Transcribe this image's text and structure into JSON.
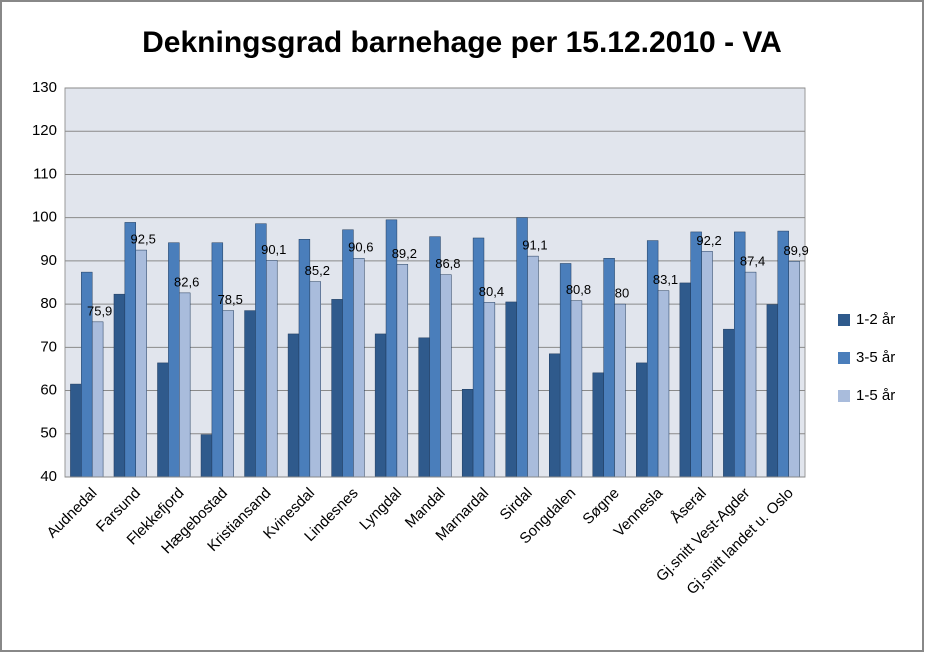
{
  "chart_data": {
    "type": "bar",
    "title": "Dekningsgrad barnehage per 15.12.2010 - VA",
    "categories": [
      "Audnedal",
      "Farsund",
      "Flekkefjord",
      "Hægebostad",
      "Kristiansand",
      "Kvinesdal",
      "Lindesnes",
      "Lyngdal",
      "Mandal",
      "Marnardal",
      "Sirdal",
      "Songdalen",
      "Søgne",
      "Vennesla",
      "Åseral",
      "Gj.snitt Vest-Agder",
      "Gj.snitt landet u. Oslo"
    ],
    "series": [
      {
        "name": "1-2 år",
        "color": "#2f5a8c",
        "values": [
          61.5,
          82.3,
          66.4,
          49.8,
          78.5,
          73.1,
          81.1,
          73.1,
          72.2,
          60.3,
          80.5,
          68.5,
          64.1,
          66.4,
          84.9,
          74.2,
          79.9
        ]
      },
      {
        "name": "3-5 år",
        "color": "#4a7ebb",
        "values": [
          87.4,
          98.9,
          94.2,
          94.2,
          98.6,
          95.0,
          97.2,
          99.5,
          95.6,
          95.3,
          100,
          89.4,
          90.6,
          94.7,
          96.7,
          96.7,
          96.9
        ]
      },
      {
        "name": "1-5 år",
        "color": "#a9bcdc",
        "values": [
          75.9,
          92.5,
          82.6,
          78.5,
          90.1,
          85.2,
          90.6,
          89.2,
          86.8,
          80.4,
          91.1,
          80.8,
          80,
          83.1,
          92.2,
          87.4,
          89.9
        ],
        "value_labels": [
          "75,9",
          "92,5",
          "82,6",
          "78,5",
          "90,1",
          "85,2",
          "90,6",
          "89,2",
          "86,8",
          "80,4",
          "91,1",
          "80,8",
          "80",
          "83,1",
          "92,2",
          "87,4",
          "89,9"
        ]
      }
    ],
    "ylim": [
      40,
      130
    ],
    "yticks": [
      40,
      50,
      60,
      70,
      80,
      90,
      100,
      110,
      120,
      130
    ],
    "grid": true,
    "legend": "right"
  }
}
